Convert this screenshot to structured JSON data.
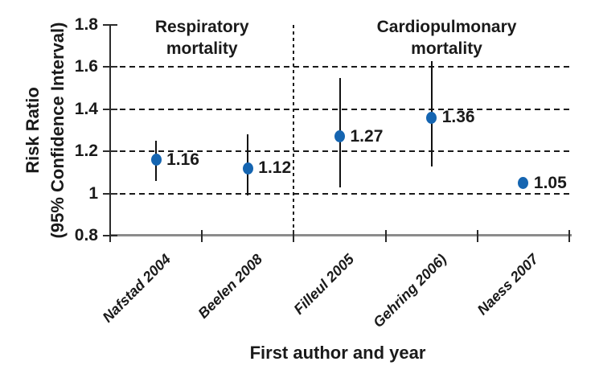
{
  "chart_data": {
    "type": "scatter",
    "subtype": "forest-plot-with-95ci-error-bars",
    "title": "",
    "xlabel": "First author and year",
    "ylabel_line1": "Risk Ratio",
    "ylabel_line2": "(95% Confidence Interval)",
    "ylim": [
      0.8,
      1.8
    ],
    "yticks": [
      {
        "value": 1.8,
        "label": "1.8"
      },
      {
        "value": 1.6,
        "label": "1.6"
      },
      {
        "value": 1.4,
        "label": "1.4"
      },
      {
        "value": 1.2,
        "label": "1.2"
      },
      {
        "value": 1.0,
        "label": "1"
      },
      {
        "value": 0.8,
        "label": "0.8"
      }
    ],
    "gridlines_y": [
      1.6,
      1.4,
      1.2,
      1.0
    ],
    "grid": "horizontal dashed black",
    "legend": "none",
    "categories": [
      "Nafstad 2004",
      "Beelen 2008",
      "Filleul 2005",
      "Gehring 2006)",
      "Naess 2007"
    ],
    "series": [
      {
        "name": "Risk Ratio (95% CI)",
        "points": [
          {
            "category": "Nafstad 2004",
            "value": 1.16,
            "label": "1.16",
            "ci_low": 1.06,
            "ci_high": 1.25
          },
          {
            "category": "Beelen 2008",
            "value": 1.12,
            "label": "1.12",
            "ci_low": 0.99,
            "ci_high": 1.28
          },
          {
            "category": "Filleul 2005",
            "value": 1.27,
            "label": "1.27",
            "ci_low": 1.03,
            "ci_high": 1.55
          },
          {
            "category": "Gehring 2006)",
            "value": 1.36,
            "label": "1.36",
            "ci_low": 1.13,
            "ci_high": 1.63
          },
          {
            "category": "Naess 2007",
            "value": 1.05,
            "label": "1.05",
            "ci_low": null,
            "ci_high": null
          }
        ]
      }
    ],
    "sections": [
      {
        "label_line1": "Respiratory",
        "label_line2": "mortality",
        "center_frac": 0.2
      },
      {
        "label_line1": "Cardiopulmonary",
        "label_line2": "mortality",
        "center_frac": 0.733
      }
    ],
    "divider_x_frac": 0.4,
    "colors": {
      "marker": "#1565b1",
      "error_bar": "#111111",
      "gridline": "#1a1a1a",
      "x_axis_line": "#8c8c8c",
      "y_axis_line": "#2b2b2b",
      "text": "#1a1a1a",
      "background": "#ffffff"
    }
  }
}
